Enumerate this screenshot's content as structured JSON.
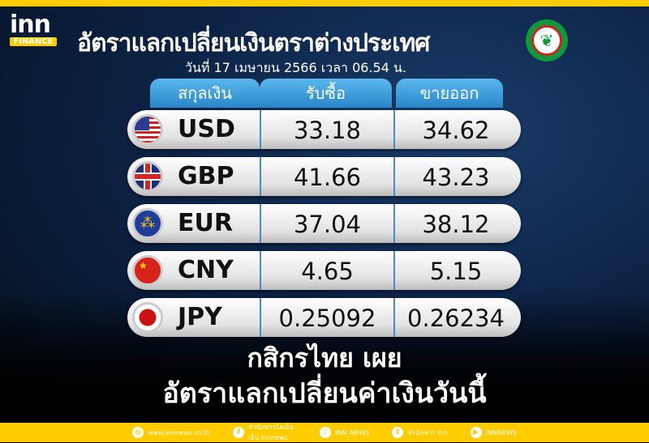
{
  "brand": {
    "logo_top": "inn",
    "logo_bottom": "FINANCE"
  },
  "header": {
    "title": "อัตราแลกเปลี่ยนเงินตราต่างประเทศ",
    "date": "วันที่ 17 เมษายน 2566 เวลา  06.54 น."
  },
  "table": {
    "columns": [
      "สกุลเงิน",
      "รับซื้อ",
      "ขายออก"
    ],
    "rows": [
      {
        "code": "USD",
        "buy": "33.18",
        "sell": "34.62"
      },
      {
        "code": "GBP",
        "buy": "41.66",
        "sell": "43.23"
      },
      {
        "code": "EUR",
        "buy": "37.04",
        "sell": "38.12"
      },
      {
        "code": "CNY",
        "buy": "4.65",
        "sell": "5.15"
      },
      {
        "code": "JPY",
        "buy": "0.25092",
        "sell": "0.26234"
      }
    ]
  },
  "headline": {
    "line1": "กสิกรไทย เผย",
    "line2": "อัตราแลกเปลี่ยนค่าเงินวันนี้"
  },
  "footer": [
    {
      "icon": "globe-icon",
      "label": "www.innnews.co.th"
    },
    {
      "icon": "facebook-icon",
      "label": "สำนักข่าวไอเอ็นเอ็น innnews"
    },
    {
      "icon": "tiktok-icon",
      "label": "INN_NEWS"
    },
    {
      "icon": "twitter-icon",
      "label": "สำนักข่าว inn"
    },
    {
      "icon": "youtube-icon",
      "label": "INNNEWS"
    }
  ],
  "colors": {
    "accent": "#ffcc00",
    "header_blue": "#2a86c8",
    "bank_green": "#0c9a3c"
  }
}
